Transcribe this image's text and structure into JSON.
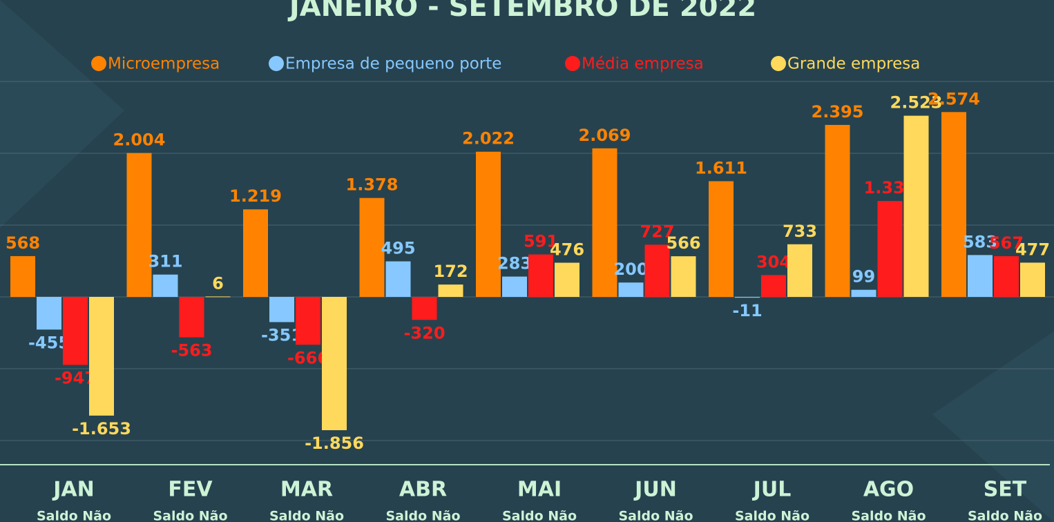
{
  "chart_data": {
    "type": "bar",
    "title": "JANEIRO - SETEMBRO DE 2022",
    "categories": [
      "JAN",
      "FEV",
      "MAR",
      "ABR",
      "MAI",
      "JUN",
      "JUL",
      "AGO",
      "SET"
    ],
    "category_subtitles": [
      "Saldo Não",
      "Saldo Não",
      "Saldo Não",
      "Saldo Não",
      "Saldo Não",
      "Saldo Não",
      "Saldo Não",
      "Saldo Não",
      "Saldo Não"
    ],
    "series": [
      {
        "name": "Microempresa",
        "color": "#ff8300",
        "values": [
          568,
          2004,
          1219,
          1378,
          2022,
          2069,
          1611,
          2395,
          2574
        ],
        "value_labels": [
          "568",
          "2.004",
          "1.219",
          "1.378",
          "2.022",
          "2.069",
          "1.611",
          "2.395",
          "2.574"
        ]
      },
      {
        "name": "Empresa de pequeno porte",
        "color": "#86c8ff",
        "values": [
          -455,
          311,
          -351,
          495,
          283,
          200,
          -11,
          99,
          583
        ],
        "value_labels": [
          "-455",
          "311",
          "-351",
          "495",
          "283",
          "200",
          "-11",
          "99",
          "583"
        ]
      },
      {
        "name": "Média empresa",
        "color": "#ff1c1c",
        "values": [
          -947,
          -563,
          -666,
          -320,
          591,
          727,
          304,
          1335,
          567
        ],
        "value_labels": [
          "-947",
          "-563",
          "-666",
          "-320",
          "591",
          "727",
          "304",
          "1.335",
          "567"
        ]
      },
      {
        "name": "Grande empresa",
        "color": "#ffd95c",
        "values": [
          -1653,
          6,
          -1856,
          172,
          476,
          566,
          733,
          2523,
          477
        ],
        "value_labels": [
          "-1.653",
          "6",
          "-1.856",
          "172",
          "476",
          "566",
          "733",
          "2.523",
          "477"
        ]
      }
    ],
    "ylim": [
      -2000,
      3000
    ],
    "yticks": [
      -2000,
      -1000,
      0,
      1000,
      2000,
      3000
    ],
    "grid": true
  }
}
